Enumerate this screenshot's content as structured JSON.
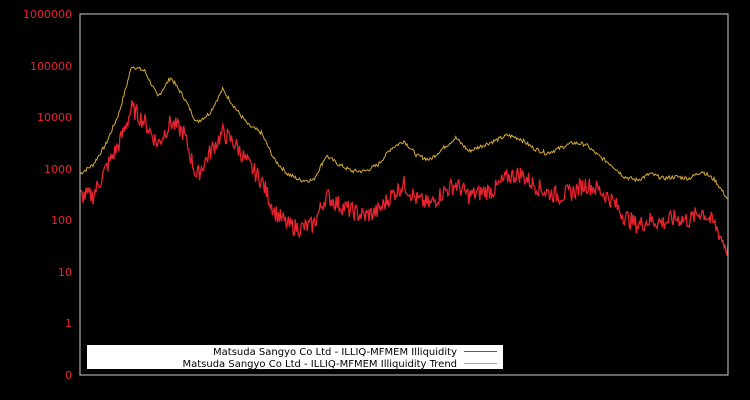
{
  "chart_data": {
    "type": "line",
    "title": "",
    "xlabel": "",
    "ylabel": "",
    "yscale": "log",
    "yticks": [
      "0",
      "1",
      "10",
      "100",
      "1000",
      "10000",
      "100000",
      "1000000"
    ],
    "ylim": [
      0,
      1000000
    ],
    "grid": false,
    "legend_position": "lower-left",
    "background": "#000000",
    "axis_color": "#cccccc",
    "x": [
      0,
      0.02,
      0.04,
      0.06,
      0.08,
      0.1,
      0.12,
      0.14,
      0.16,
      0.18,
      0.2,
      0.22,
      0.24,
      0.26,
      0.28,
      0.3,
      0.32,
      0.34,
      0.36,
      0.38,
      0.4,
      0.42,
      0.44,
      0.46,
      0.48,
      0.5,
      0.52,
      0.54,
      0.56,
      0.58,
      0.6,
      0.62,
      0.64,
      0.66,
      0.68,
      0.7,
      0.72,
      0.74,
      0.76,
      0.78,
      0.8,
      0.82,
      0.84,
      0.86,
      0.88,
      0.9,
      0.92,
      0.94,
      0.96,
      0.98,
      1.0
    ],
    "series": [
      {
        "name": "Matsuda Sangyo Co Ltd - ILLIQ-MFMEM Illiquidity",
        "color": "#e8232e",
        "values": [
          300,
          300,
          1000,
          3000,
          15000,
          8000,
          3000,
          8000,
          5000,
          700,
          2000,
          5000,
          3000,
          1200,
          600,
          150,
          80,
          70,
          80,
          300,
          200,
          150,
          120,
          150,
          300,
          500,
          250,
          200,
          350,
          500,
          300,
          350,
          400,
          700,
          800,
          500,
          350,
          300,
          350,
          500,
          400,
          250,
          120,
          80,
          100,
          90,
          110,
          100,
          150,
          80,
          25
        ]
      },
      {
        "name": "Matsuda Sangyo Co Ltd - ILLIQ-MFMEM Illiquidity Trend",
        "color": "#d4a838",
        "values": [
          800,
          1200,
          3000,
          12000,
          100000,
          80000,
          25000,
          60000,
          25000,
          8000,
          12000,
          35000,
          15000,
          7000,
          5000,
          1500,
          800,
          600,
          600,
          1800,
          1200,
          900,
          900,
          1200,
          2500,
          3500,
          1800,
          1500,
          2500,
          4000,
          2200,
          2800,
          3500,
          4500,
          3800,
          2500,
          2000,
          2500,
          3200,
          3000,
          1800,
          1200,
          700,
          600,
          800,
          650,
          700,
          650,
          900,
          600,
          250
        ]
      }
    ]
  },
  "legend": {
    "items": [
      {
        "label": "Matsuda Sangyo Co Ltd - ILLIQ-MFMEM Illiquidity",
        "color": "#e8232e"
      },
      {
        "label": "Matsuda Sangyo Co Ltd - ILLIQ-MFMEM Illiquidity Trend",
        "color": "#d4a838"
      }
    ]
  }
}
